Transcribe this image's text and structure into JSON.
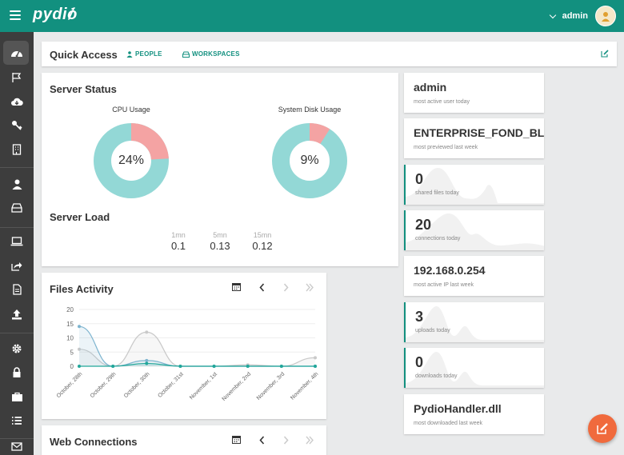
{
  "app": {
    "logo_text": "pydio"
  },
  "header": {
    "user_name": "admin"
  },
  "sidebar": {
    "items": [
      {
        "icon": "dashboard-icon",
        "active": true
      },
      {
        "icon": "flag-icon"
      },
      {
        "icon": "cloud-download-icon"
      },
      {
        "icon": "key-icon"
      },
      {
        "icon": "building-icon"
      },
      {
        "icon": "user-icon"
      },
      {
        "icon": "drive-icon"
      },
      {
        "icon": "laptop-icon"
      },
      {
        "icon": "share-icon"
      },
      {
        "icon": "document-icon"
      },
      {
        "icon": "upload-icon"
      },
      {
        "icon": "gear-icon"
      },
      {
        "icon": "lock-icon"
      },
      {
        "icon": "briefcase-icon"
      },
      {
        "icon": "list-icon"
      },
      {
        "icon": "envelope-icon"
      }
    ]
  },
  "quick_access": {
    "title": "Quick Access",
    "people_label": "PEOPLE",
    "workspaces_label": "WORKSPACES"
  },
  "server_status": {
    "title": "Server Status",
    "cpu": {
      "label": "CPU Usage",
      "percent": 24,
      "display": "24%"
    },
    "disk": {
      "label": "System Disk Usage",
      "percent": 9,
      "display": "9%"
    },
    "load_title": "Server Load",
    "load": [
      {
        "key": "1mn",
        "value": "0.1"
      },
      {
        "key": "5mn",
        "value": "0.13"
      },
      {
        "key": "15mn",
        "value": "0.12"
      }
    ],
    "colors": {
      "used": "#f4a3a3",
      "free": "#93d8d6"
    }
  },
  "files_activity": {
    "title": "Files Activity",
    "chart_data": {
      "type": "line",
      "categories": [
        "October, 28th",
        "October, 29th",
        "October, 30th",
        "October, 31st",
        "November, 1st",
        "November, 2nd",
        "November, 3rd",
        "November, 4th"
      ],
      "series": [
        {
          "values": [
            6,
            0,
            12,
            0,
            0,
            0.5,
            0,
            3
          ],
          "color": "#c9c9c9"
        },
        {
          "values": [
            14,
            0,
            2,
            0,
            0,
            0,
            0,
            0
          ],
          "color": "#7db4cf"
        },
        {
          "values": [
            0,
            0,
            1,
            0,
            0,
            0,
            0,
            0
          ],
          "color": "#21a79a"
        }
      ],
      "yticks": [
        "0",
        "5",
        "10",
        "15",
        "20"
      ],
      "ylim": [
        0,
        20
      ],
      "grid": true
    }
  },
  "web_connections": {
    "title": "Web Connections"
  },
  "tiles": [
    {
      "value": "admin",
      "label": "most active user today",
      "accent": false,
      "big": false,
      "spark": false
    },
    {
      "value": "ENTERPRISE_FOND_BL...",
      "label": "most previewed last week",
      "accent": false,
      "big": false,
      "spark": false
    },
    {
      "value": "0",
      "label": "shared files today",
      "accent": true,
      "big": true,
      "spark": true
    },
    {
      "value": "20",
      "label": "connections today",
      "accent": true,
      "big": true,
      "spark": true
    },
    {
      "value": "192.168.0.254",
      "label": "most active IP last week",
      "accent": false,
      "big": false,
      "spark": false
    },
    {
      "value": "3",
      "label": "uploads today",
      "accent": true,
      "big": true,
      "spark": true
    },
    {
      "value": "0",
      "label": "downloads today",
      "accent": true,
      "big": true,
      "spark": true
    },
    {
      "value": "PydioHandler.dll",
      "label": "most downloaded last week",
      "accent": false,
      "big": false,
      "spark": false
    }
  ],
  "theme": {
    "primary": "#12907f",
    "sidebar_bg": "#3d3d3d",
    "fab": "#f06a3d"
  }
}
